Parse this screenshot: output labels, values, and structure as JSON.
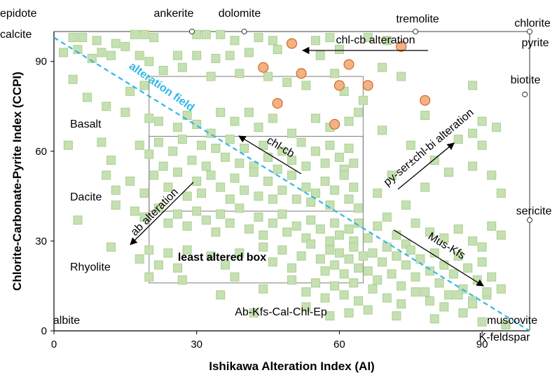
{
  "chart_data": {
    "type": "scatter",
    "xlabel": "Ishikawa Alteration Index (AI)",
    "ylabel": "Chlorite-Carbonate-Pyrite Index (CCPI)",
    "xlim": [
      0,
      100
    ],
    "ylim": [
      0,
      100
    ],
    "x_ticks": [
      0,
      30,
      60,
      90
    ],
    "y_ticks": [
      0,
      30,
      60,
      90
    ],
    "grid": false,
    "colors": {
      "green_fill": "#c6e0b4",
      "green_edge": "#a9d18e",
      "orange_fill": "#f4b183",
      "orange_edge": "#c55a11",
      "alteration_field_line": "#2fb7e6",
      "box_line": "#7f7f7f"
    },
    "series": [
      {
        "marker": "square",
        "color": "#c6e0b4",
        "points": [
          [
            4,
            98
          ],
          [
            6,
            98
          ],
          [
            9,
            97
          ],
          [
            13,
            96
          ],
          [
            17,
            99
          ],
          [
            19,
            99
          ],
          [
            21,
            98
          ],
          [
            30,
            99
          ],
          [
            32,
            99
          ],
          [
            35,
            99
          ],
          [
            38,
            97
          ],
          [
            43,
            98
          ],
          [
            46,
            97
          ],
          [
            55,
            97
          ],
          [
            58,
            98
          ],
          [
            66,
            98
          ],
          [
            70,
            97
          ],
          [
            2,
            93
          ],
          [
            5,
            94
          ],
          [
            8,
            91
          ],
          [
            10,
            93
          ],
          [
            12,
            92
          ],
          [
            15,
            95
          ],
          [
            18,
            92
          ],
          [
            20,
            90
          ],
          [
            26,
            92
          ],
          [
            30,
            92
          ],
          [
            34,
            91
          ],
          [
            37,
            92
          ],
          [
            41,
            93
          ],
          [
            47,
            94
          ],
          [
            56,
            92
          ],
          [
            60,
            94
          ],
          [
            4,
            84
          ],
          [
            7,
            78
          ],
          [
            11,
            75
          ],
          [
            16,
            80
          ],
          [
            19,
            82
          ],
          [
            23,
            87
          ],
          [
            27,
            88
          ],
          [
            33,
            85
          ],
          [
            39,
            86
          ],
          [
            45,
            85
          ],
          [
            49,
            83
          ],
          [
            53,
            82
          ],
          [
            59,
            86
          ],
          [
            61,
            80
          ],
          [
            65,
            77
          ],
          [
            69,
            88
          ],
          [
            73,
            85
          ],
          [
            88,
            82
          ],
          [
            15,
            73
          ],
          [
            20,
            71
          ],
          [
            22,
            70
          ],
          [
            26,
            68
          ],
          [
            28,
            72
          ],
          [
            30,
            69
          ],
          [
            33,
            66
          ],
          [
            35,
            73
          ],
          [
            38,
            70
          ],
          [
            41,
            73
          ],
          [
            43,
            68
          ],
          [
            46,
            71
          ],
          [
            50,
            66
          ],
          [
            55,
            71
          ],
          [
            58,
            68
          ],
          [
            62,
            70
          ],
          [
            64,
            73
          ],
          [
            69,
            67
          ],
          [
            78,
            72
          ],
          [
            90,
            70
          ],
          [
            93,
            68
          ],
          [
            3,
            62
          ],
          [
            10,
            63
          ],
          [
            12,
            57
          ],
          [
            18,
            62
          ],
          [
            20,
            59
          ],
          [
            22,
            63
          ],
          [
            23,
            55
          ],
          [
            25,
            60
          ],
          [
            27,
            64
          ],
          [
            29,
            57
          ],
          [
            31,
            62
          ],
          [
            32,
            55
          ],
          [
            34,
            61
          ],
          [
            36,
            58
          ],
          [
            37,
            64
          ],
          [
            39,
            56
          ],
          [
            40,
            61
          ],
          [
            42,
            55
          ],
          [
            44,
            62
          ],
          [
            45,
            58
          ],
          [
            47,
            54
          ],
          [
            48,
            60
          ],
          [
            50,
            57
          ],
          [
            52,
            63
          ],
          [
            53,
            55
          ],
          [
            55,
            60
          ],
          [
            57,
            56
          ],
          [
            58,
            62
          ],
          [
            60,
            58
          ],
          [
            61,
            54
          ],
          [
            62,
            61
          ],
          [
            63,
            56
          ],
          [
            75,
            62
          ],
          [
            80,
            57
          ],
          [
            85,
            64
          ],
          [
            88,
            66
          ],
          [
            90,
            62
          ],
          [
            11,
            52
          ],
          [
            13,
            47
          ],
          [
            16,
            50
          ],
          [
            19,
            46
          ],
          [
            21,
            52
          ],
          [
            24,
            48
          ],
          [
            26,
            53
          ],
          [
            28,
            45
          ],
          [
            30,
            50
          ],
          [
            31,
            46
          ],
          [
            33,
            52
          ],
          [
            35,
            48
          ],
          [
            37,
            44
          ],
          [
            38,
            51
          ],
          [
            40,
            47
          ],
          [
            42,
            53
          ],
          [
            43,
            45
          ],
          [
            45,
            50
          ],
          [
            46,
            44
          ],
          [
            48,
            47
          ],
          [
            50,
            52
          ],
          [
            51,
            44
          ],
          [
            53,
            48
          ],
          [
            54,
            43
          ],
          [
            55,
            46
          ],
          [
            57,
            50
          ],
          [
            58,
            42
          ],
          [
            59,
            47
          ],
          [
            61,
            52
          ],
          [
            62,
            44
          ],
          [
            63,
            48
          ],
          [
            64,
            41
          ],
          [
            68,
            46
          ],
          [
            71,
            52
          ],
          [
            74,
            42
          ],
          [
            78,
            48
          ],
          [
            83,
            53
          ],
          [
            88,
            55
          ],
          [
            92,
            52
          ],
          [
            94,
            46
          ],
          [
            5,
            37
          ],
          [
            13,
            42
          ],
          [
            17,
            40
          ],
          [
            19,
            38
          ],
          [
            22,
            41
          ],
          [
            24,
            36
          ],
          [
            26,
            39
          ],
          [
            28,
            35
          ],
          [
            30,
            40
          ],
          [
            32,
            37
          ],
          [
            34,
            33
          ],
          [
            35,
            39
          ],
          [
            37,
            36
          ],
          [
            39,
            41
          ],
          [
            41,
            34
          ],
          [
            43,
            38
          ],
          [
            44,
            32
          ],
          [
            46,
            36
          ],
          [
            48,
            39
          ],
          [
            49,
            33
          ],
          [
            51,
            35
          ],
          [
            53,
            31
          ],
          [
            54,
            37
          ],
          [
            56,
            34
          ],
          [
            58,
            30
          ],
          [
            59,
            36
          ],
          [
            60,
            32
          ],
          [
            62,
            34
          ],
          [
            63,
            30
          ],
          [
            64,
            36
          ],
          [
            66,
            31
          ],
          [
            68,
            35
          ],
          [
            70,
            38
          ],
          [
            72,
            32
          ],
          [
            74,
            29
          ],
          [
            76,
            36
          ],
          [
            79,
            33
          ],
          [
            82,
            31
          ],
          [
            85,
            34
          ],
          [
            88,
            30
          ],
          [
            90,
            28
          ],
          [
            92,
            35
          ],
          [
            94,
            32
          ],
          [
            12,
            28
          ],
          [
            18,
            24
          ],
          [
            20,
            27
          ],
          [
            22,
            22
          ],
          [
            24,
            26
          ],
          [
            26,
            21
          ],
          [
            28,
            27
          ],
          [
            33,
            25
          ],
          [
            36,
            22
          ],
          [
            39,
            26
          ],
          [
            44,
            28
          ],
          [
            46,
            23
          ],
          [
            48,
            27
          ],
          [
            50,
            21
          ],
          [
            52,
            25
          ],
          [
            54,
            29
          ],
          [
            56,
            24
          ],
          [
            57,
            20
          ],
          [
            58,
            27
          ],
          [
            59,
            22
          ],
          [
            60,
            26
          ],
          [
            61,
            19
          ],
          [
            62,
            24
          ],
          [
            63,
            28
          ],
          [
            64,
            21
          ],
          [
            65,
            25
          ],
          [
            66,
            20
          ],
          [
            67,
            26
          ],
          [
            68,
            17
          ],
          [
            69,
            23
          ],
          [
            70,
            28
          ],
          [
            71,
            19
          ],
          [
            72,
            25
          ],
          [
            73,
            15
          ],
          [
            74,
            22
          ],
          [
            75,
            27
          ],
          [
            76,
            18
          ],
          [
            77,
            24
          ],
          [
            78,
            13
          ],
          [
            79,
            20
          ],
          [
            80,
            26
          ],
          [
            81,
            16
          ],
          [
            82,
            22
          ],
          [
            83,
            12
          ],
          [
            84,
            19
          ],
          [
            85,
            25
          ],
          [
            86,
            14
          ],
          [
            87,
            21
          ],
          [
            88,
            10
          ],
          [
            89,
            17
          ],
          [
            90,
            23
          ],
          [
            91,
            12
          ],
          [
            92,
            18
          ],
          [
            20,
            18
          ],
          [
            27,
            17
          ],
          [
            35,
            12
          ],
          [
            38,
            18
          ],
          [
            44,
            14
          ],
          [
            50,
            17
          ],
          [
            53,
            13
          ],
          [
            55,
            16
          ],
          [
            57,
            11
          ],
          [
            59,
            15
          ],
          [
            61,
            12
          ],
          [
            63,
            16
          ],
          [
            64,
            10
          ],
          [
            67,
            14
          ],
          [
            70,
            11
          ],
          [
            73,
            9
          ],
          [
            76,
            13
          ],
          [
            79,
            10
          ],
          [
            82,
            8
          ],
          [
            85,
            12
          ],
          [
            88,
            9
          ],
          [
            91,
            13
          ],
          [
            94,
            14
          ],
          [
            42,
            6
          ],
          [
            53,
            8
          ],
          [
            58,
            5
          ],
          [
            62,
            6
          ],
          [
            66,
            7
          ],
          [
            72,
            5
          ],
          [
            80,
            4
          ],
          [
            86,
            6
          ],
          [
            90,
            3
          ],
          [
            95,
            2
          ]
        ]
      },
      {
        "marker": "circle",
        "color": "#f4b183",
        "points": [
          [
            44,
            88
          ],
          [
            50,
            96
          ],
          [
            47,
            76
          ],
          [
            52,
            86
          ],
          [
            59,
            69
          ],
          [
            60,
            82
          ],
          [
            62,
            89
          ],
          [
            66,
            82
          ],
          [
            73,
            95
          ],
          [
            78,
            77
          ]
        ]
      }
    ],
    "end_members": [
      {
        "label": "epidote",
        "x": 0,
        "y": 100,
        "show_marker": false
      },
      {
        "label": "calcite",
        "x": 0,
        "y": 100,
        "show_marker": false
      },
      {
        "label": "ankerite",
        "x": 29,
        "y": 100,
        "show_marker": true
      },
      {
        "label": "dolomite",
        "x": 40,
        "y": 100,
        "show_marker": true
      },
      {
        "label": "tremolite",
        "x": 76,
        "y": 100,
        "show_marker": true
      },
      {
        "label": "chlorite",
        "x": 100,
        "y": 100,
        "show_marker": true
      },
      {
        "label": "pyrite",
        "x": 100,
        "y": 100,
        "show_marker": false
      },
      {
        "label": "biotite",
        "x": 99,
        "y": 79,
        "show_marker": true
      },
      {
        "label": "sericite",
        "x": 100,
        "y": 37,
        "show_marker": true
      },
      {
        "label": "muscovite",
        "x": 100,
        "y": 0,
        "show_marker": false
      },
      {
        "label": "K-feldspar",
        "x": 100,
        "y": 0,
        "show_marker": false
      },
      {
        "label": "albite",
        "x": 0,
        "y": 0,
        "show_marker": false
      }
    ],
    "rock_labels": [
      "Basalt",
      "Dacite",
      "Rhyolite"
    ],
    "annotations": {
      "alteration_field": "alteration field",
      "chl_cb_alteration": "chl-cb alteration",
      "chl_cb": "chl-cb",
      "py_ser_chl_bi_alteration": "py-ser±chl-bi alteration",
      "ab_alteration": "ab alteration",
      "mus_kfs": "Mus-Kfs",
      "least_altered_box": "least altered box",
      "ab_kfs_cal_chl_ep": "Ab-Kfs-Cal-Chl-Ep"
    },
    "boxes": [
      {
        "x": [
          20,
          65
        ],
        "y": [
          16,
          85
        ]
      },
      {
        "x": [
          20,
          65
        ],
        "y": [
          40,
          65
        ]
      }
    ]
  }
}
